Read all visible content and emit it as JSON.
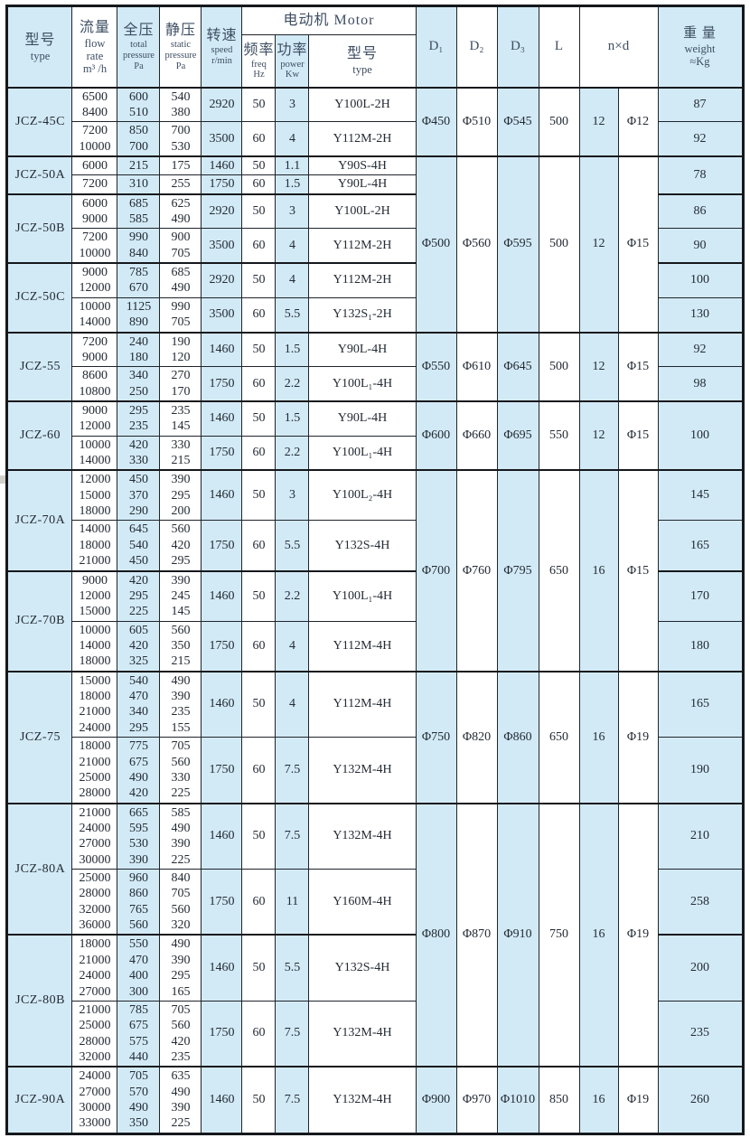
{
  "header": {
    "type": {
      "zh": "型号",
      "en": "type"
    },
    "flow": {
      "zh": "流量",
      "en": "flow\nrate\nm³ /h"
    },
    "total": {
      "zh": "全压",
      "en": "total\npressure\nPa"
    },
    "static": {
      "zh": "静压",
      "en": "static\npressure\nPa"
    },
    "speed": {
      "zh": "转速",
      "en": "speed\nr/min"
    },
    "motor_band": "电动机 Motor",
    "freq": {
      "zh": "频率",
      "en": "freq\nHz"
    },
    "power": {
      "zh": "功率",
      "en": "power\nKw"
    },
    "motor_type": {
      "zh": "型号",
      "en": "type"
    },
    "d1": "D₁",
    "d2": "D₂",
    "d3": "D₃",
    "l": "L",
    "nxd": "n×d",
    "weight": {
      "zh": "重 量",
      "en": "weight\n≈Kg"
    }
  },
  "colors": {
    "accent_fill": "#d2eaf6",
    "line": "#15181c",
    "header_text": "#3e4e63",
    "data_text": "#232b34",
    "watermark": "#a8a296"
  },
  "groups": [
    {
      "model": "JCZ-45C",
      "dims": {
        "span": 2,
        "d1": "Φ450",
        "d2": "Φ510",
        "d3": "Φ545",
        "l": "500",
        "n": "12",
        "d": "Φ12"
      },
      "rows": [
        {
          "flow": "6500\n8400",
          "total": "600\n510",
          "static": "540\n380",
          "speed": "2920",
          "freq": "50",
          "power": "3",
          "motor": "Y100L-2H",
          "weight": "87"
        },
        {
          "flow": "7200\n10000",
          "total": "850\n700",
          "static": "700\n530",
          "speed": "3500",
          "freq": "60",
          "power": "4",
          "motor": "Y112M-2H",
          "weight": "92"
        }
      ]
    },
    {
      "model": "JCZ-50A",
      "dims": {
        "span": 6,
        "d1": "Φ500",
        "d2": "Φ560",
        "d3": "Φ595",
        "l": "500",
        "n": "12",
        "d": "Φ15"
      },
      "weight_merged": "78",
      "rows": [
        {
          "flow": "6000",
          "total": "215",
          "static": "175",
          "speed": "1460",
          "freq": "50",
          "power": "1.1",
          "motor": "Y90S-4H"
        },
        {
          "flow": "7200",
          "total": "310",
          "static": "255",
          "speed": "1750",
          "freq": "60",
          "power": "1.5",
          "motor": "Y90L-4H"
        }
      ]
    },
    {
      "model": "JCZ-50B",
      "rows": [
        {
          "flow": "6000\n9000",
          "total": "685\n585",
          "static": "625\n490",
          "speed": "2920",
          "freq": "50",
          "power": "3",
          "motor": "Y100L-2H",
          "weight": "86"
        },
        {
          "flow": "7200\n10000",
          "total": "990\n840",
          "static": "900\n705",
          "speed": "3500",
          "freq": "60",
          "power": "4",
          "motor": "Y112M-2H",
          "weight": "90"
        }
      ]
    },
    {
      "model": "JCZ-50C",
      "rows": [
        {
          "flow": "9000\n12000",
          "total": "785\n670",
          "static": "685\n490",
          "speed": "2920",
          "freq": "50",
          "power": "4",
          "motor": "Y112M-2H",
          "weight": "100"
        },
        {
          "flow": "10000\n14000",
          "total": "1125\n890",
          "static": "990\n705",
          "speed": "3500",
          "freq": "60",
          "power": "5.5",
          "motor": "Y132S₁-2H",
          "weight": "130"
        }
      ]
    },
    {
      "model": "JCZ-55",
      "dims": {
        "span": 2,
        "d1": "Φ550",
        "d2": "Φ610",
        "d3": "Φ645",
        "l": "500",
        "n": "12",
        "d": "Φ15"
      },
      "rows": [
        {
          "flow": "7200\n9000",
          "total": "240\n180",
          "static": "190\n120",
          "speed": "1460",
          "freq": "50",
          "power": "1.5",
          "motor": "Y90L-4H",
          "weight": "92"
        },
        {
          "flow": "8600\n10800",
          "total": "340\n250",
          "static": "270\n170",
          "speed": "1750",
          "freq": "60",
          "power": "2.2",
          "motor": "Y100L₁-4H",
          "weight": "98"
        }
      ]
    },
    {
      "model": "JCZ-60",
      "dims": {
        "span": 2,
        "d1": "Φ600",
        "d2": "Φ660",
        "d3": "Φ695",
        "l": "550",
        "n": "12",
        "d": "Φ15"
      },
      "weight_merged": "100",
      "rows": [
        {
          "flow": "9000\n12000",
          "total": "295\n235",
          "static": "235\n145",
          "speed": "1460",
          "freq": "50",
          "power": "1.5",
          "motor": "Y90L-4H"
        },
        {
          "flow": "10000\n14000",
          "total": "420\n330",
          "static": "330\n215",
          "speed": "1750",
          "freq": "60",
          "power": "2.2",
          "motor": "Y100L₁-4H"
        }
      ]
    },
    {
      "model": "JCZ-70A",
      "dims": {
        "span": 4,
        "d1": "Φ700",
        "d2": "Φ760",
        "d3": "Φ795",
        "l": "650",
        "n": "16",
        "d": "Φ15"
      },
      "rows": [
        {
          "flow": "12000\n15000\n18000",
          "total": "450\n370\n290",
          "static": "390\n295\n200",
          "speed": "1460",
          "freq": "50",
          "power": "3",
          "motor": "Y100L₂-4H",
          "weight": "145"
        },
        {
          "flow": "14000\n18000\n21000",
          "total": "645\n540\n450",
          "static": "560\n420\n295",
          "speed": "1750",
          "freq": "60",
          "power": "5.5",
          "motor": "Y132S-4H",
          "weight": "165"
        }
      ]
    },
    {
      "model": "JCZ-70B",
      "rows": [
        {
          "flow": "9000\n12000\n15000",
          "total": "420\n295\n225",
          "static": "390\n245\n145",
          "speed": "1460",
          "freq": "50",
          "power": "2.2",
          "motor": "Y100L₁-4H",
          "weight": "170"
        },
        {
          "flow": "10000\n14000\n18000",
          "total": "605\n420\n325",
          "static": "560\n350\n215",
          "speed": "1750",
          "freq": "60",
          "power": "4",
          "motor": "Y112M-4H",
          "weight": "180"
        }
      ]
    },
    {
      "model": "JCZ-75",
      "dims": {
        "span": 2,
        "d1": "Φ750",
        "d2": "Φ820",
        "d3": "Φ860",
        "l": "650",
        "n": "16",
        "d": "Φ19"
      },
      "rows": [
        {
          "flow": "15000\n18000\n21000\n24000",
          "total": "540\n470\n340\n295",
          "static": "490\n390\n235\n155",
          "speed": "1460",
          "freq": "50",
          "power": "4",
          "motor": "Y112M-4H",
          "weight": "165"
        },
        {
          "flow": "18000\n21000\n25000\n28000",
          "total": "775\n675\n490\n420",
          "static": "705\n560\n330\n225",
          "speed": "1750",
          "freq": "60",
          "power": "7.5",
          "motor": "Y132M-4H",
          "weight": "190"
        }
      ]
    },
    {
      "model": "JCZ-80A",
      "dims": {
        "span": 4,
        "d1": "Φ800",
        "d2": "Φ870",
        "d3": "Φ910",
        "l": "750",
        "n": "16",
        "d": "Φ19"
      },
      "rows": [
        {
          "flow": "21000\n24000\n27000\n30000",
          "total": "665\n595\n530\n390",
          "static": "585\n490\n390\n225",
          "speed": "1460",
          "freq": "50",
          "power": "7.5",
          "motor": "Y132M-4H",
          "weight": "210"
        },
        {
          "flow": "25000\n28000\n32000\n36000",
          "total": "960\n860\n765\n560",
          "static": "840\n705\n560\n320",
          "speed": "1750",
          "freq": "60",
          "power": "11",
          "motor": "Y160M-4H",
          "weight": "258"
        }
      ]
    },
    {
      "model": "JCZ-80B",
      "rows": [
        {
          "flow": "18000\n21000\n24000\n27000",
          "total": "550\n470\n400\n300",
          "static": "490\n390\n295\n165",
          "speed": "1460",
          "freq": "50",
          "power": "5.5",
          "motor": "Y132S-4H",
          "weight": "200",
          "tight": true
        },
        {
          "flow": "21000\n25000\n28000\n32000",
          "total": "785\n675\n575\n440",
          "static": "705\n560\n420\n235",
          "speed": "1750",
          "freq": "60",
          "power": "7.5",
          "motor": "Y132M-4H",
          "weight": "235",
          "tight": true
        }
      ]
    },
    {
      "model": "JCZ-90A",
      "dims": {
        "span": 1,
        "d1": "Φ900",
        "d2": "Φ970",
        "d3": "Φ1010",
        "l": "850",
        "n": "16",
        "d": "Φ19"
      },
      "rows": [
        {
          "flow": "24000\n27000\n30000\n33000",
          "total": "705\n570\n490\n350",
          "static": "635\n490\n390\n225",
          "speed": "1460",
          "freq": "50",
          "power": "7.5",
          "motor": "Y132M-4H",
          "weight": "260"
        }
      ]
    }
  ]
}
